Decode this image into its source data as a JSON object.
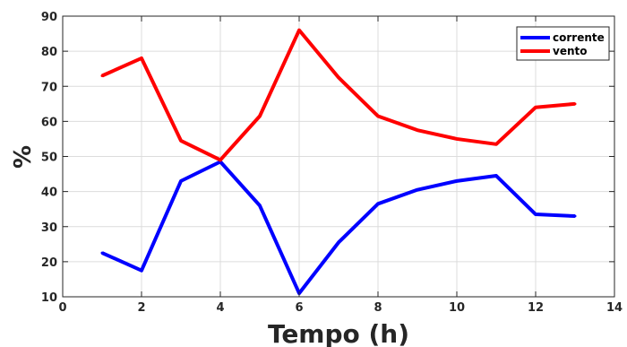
{
  "chart_data": {
    "type": "line",
    "title": "",
    "xlabel": "Tempo (h)",
    "ylabel": "%",
    "xlim": [
      0,
      14
    ],
    "ylim": [
      10,
      90
    ],
    "xticks": [
      0,
      2,
      4,
      6,
      8,
      10,
      12,
      14
    ],
    "yticks": [
      10,
      20,
      30,
      40,
      50,
      60,
      70,
      80,
      90
    ],
    "grid": true,
    "legend_position": "top-right",
    "x": [
      1,
      2,
      3,
      4,
      5,
      6,
      7,
      8,
      9,
      10,
      11,
      12,
      13
    ],
    "series": [
      {
        "name": "corrente",
        "color": "#0000ff",
        "values": [
          22.5,
          17.5,
          43,
          48.5,
          36,
          11,
          25.5,
          36.5,
          40.5,
          43,
          44.5,
          33.5,
          33
        ]
      },
      {
        "name": "vento",
        "color": "#ff0000",
        "values": [
          73,
          78,
          54.5,
          49,
          61.5,
          86,
          72.5,
          61.5,
          57.5,
          55,
          53.5,
          64,
          65
        ]
      }
    ]
  }
}
